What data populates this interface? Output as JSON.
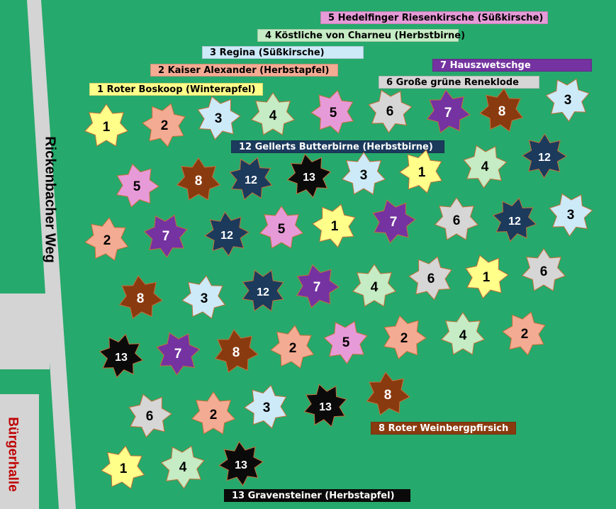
{
  "street_label": "Rickenbacher Weg",
  "building_label": "Bürgerhalle",
  "legend": [
    {
      "num": 1,
      "text": "1 Roter Boskoop (Winterapfel)",
      "bg": "#ffff8a",
      "fg": "#000000"
    },
    {
      "num": 2,
      "text": "2 Kaiser Alexander (Herbstapfel)",
      "bg": "#f4ab93",
      "fg": "#000000"
    },
    {
      "num": 3,
      "text": "3 Regina (Süßkirsche)",
      "bg": "#cdeaf9",
      "fg": "#000000"
    },
    {
      "num": 4,
      "text": "4 Köstliche von Charneu (Herbstbirne)",
      "bg": "#c5ecc4",
      "fg": "#000000"
    },
    {
      "num": 5,
      "text": "5 Hedelfinger Riesenkirsche (Süßkirsche)",
      "bg": "#e79ad8",
      "fg": "#000000"
    },
    {
      "num": 6,
      "text": "6 Große grüne Reneklode",
      "bg": "#d6d6d6",
      "fg": "#000000"
    },
    {
      "num": 7,
      "text": "7 Hauszwetschge",
      "bg": "#7433a0",
      "fg": "#ffffff"
    },
    {
      "num": 8,
      "text": "8 Roter Weinbergpfirsich",
      "bg": "#8a3a0f",
      "fg": "#ffffff"
    },
    {
      "num": 12,
      "text": "12 Gellerts Butterbirne (Herbstbirne)",
      "bg": "#1b3a5c",
      "fg": "#ffffff"
    },
    {
      "num": 13,
      "text": "13 Gravensteiner (Herbstapfel)",
      "bg": "#0a0a0a",
      "fg": "#ffffff"
    }
  ],
  "trees": [
    {
      "n": "1"
    },
    {
      "n": "2"
    },
    {
      "n": "3"
    },
    {
      "n": "4"
    },
    {
      "n": "5"
    },
    {
      "n": "6"
    },
    {
      "n": "7"
    },
    {
      "n": "8"
    },
    {
      "n": "3"
    },
    {
      "n": "5"
    },
    {
      "n": "8"
    },
    {
      "n": "12"
    },
    {
      "n": "13"
    },
    {
      "n": "3"
    },
    {
      "n": "1"
    },
    {
      "n": "4"
    },
    {
      "n": "12"
    },
    {
      "n": "2"
    },
    {
      "n": "7"
    },
    {
      "n": "12"
    },
    {
      "n": "5"
    },
    {
      "n": "1"
    },
    {
      "n": "7"
    },
    {
      "n": "6"
    },
    {
      "n": "12"
    },
    {
      "n": "3"
    },
    {
      "n": "8"
    },
    {
      "n": "3"
    },
    {
      "n": "12"
    },
    {
      "n": "7"
    },
    {
      "n": "4"
    },
    {
      "n": "6"
    },
    {
      "n": "1"
    },
    {
      "n": "6"
    },
    {
      "n": "13"
    },
    {
      "n": "7"
    },
    {
      "n": "8"
    },
    {
      "n": "2"
    },
    {
      "n": "5"
    },
    {
      "n": "2"
    },
    {
      "n": "4"
    },
    {
      "n": "2"
    },
    {
      "n": "6"
    },
    {
      "n": "2"
    },
    {
      "n": "3"
    },
    {
      "n": "13"
    },
    {
      "n": "8"
    },
    {
      "n": "1"
    },
    {
      "n": "4"
    },
    {
      "n": "13"
    }
  ]
}
